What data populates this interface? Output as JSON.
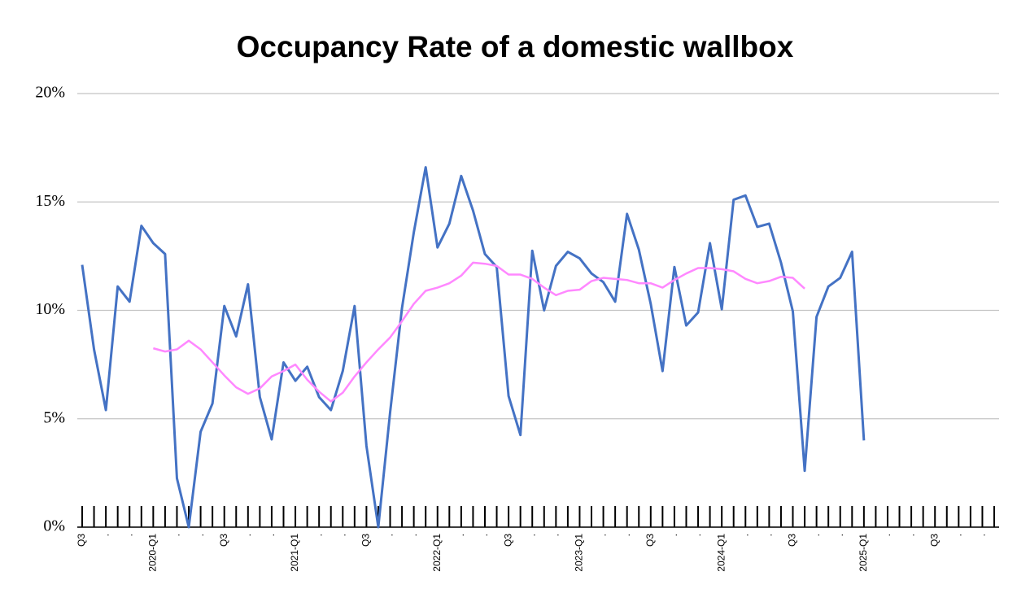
{
  "chart_data": {
    "type": "line",
    "title": "Occupancy Rate of a domestic wallbox",
    "categories": [
      "Q3",
      null,
      ".",
      null,
      ".",
      null,
      "2020-Q1",
      null,
      ".",
      null,
      ".",
      null,
      "Q3",
      null,
      ".",
      null,
      ".",
      null,
      "2021-Q1",
      null,
      ".",
      null,
      ".",
      null,
      "Q3",
      null,
      ".",
      null,
      ".",
      null,
      "2022-Q1",
      null,
      ".",
      null,
      ".",
      null,
      "Q3",
      null,
      ".",
      null,
      ".",
      null,
      "2023-Q1",
      null,
      ".",
      null,
      ".",
      null,
      "Q3",
      null,
      ".",
      null,
      ".",
      null,
      "2024-Q1",
      null,
      ".",
      null,
      ".",
      null,
      "Q3",
      null,
      ".",
      null,
      ".",
      null,
      "2025-Q1",
      null,
      ".",
      null,
      ".",
      null,
      "Q3",
      null,
      ".",
      null,
      ".",
      null
    ],
    "series": [
      {
        "color": "#4472c4",
        "values": [
          12.1,
          8.2,
          5.4,
          11.1,
          10.4,
          13.9,
          13.1,
          12.6,
          2.25,
          0,
          4.4,
          5.7,
          10.2,
          8.8,
          11.2,
          6.0,
          4.05,
          7.6,
          6.75,
          7.4,
          6.0,
          5.4,
          7.2,
          10.2,
          3.75,
          0,
          5.3,
          10.1,
          13.6,
          16.6,
          12.9,
          14.0,
          16.2,
          14.6,
          12.6,
          12.0,
          6.05,
          4.25,
          12.75,
          10.0,
          12.05,
          12.7,
          12.4,
          11.7,
          11.3,
          10.4,
          14.45,
          12.8,
          10.3,
          7.2,
          12.0,
          9.3,
          9.9,
          13.1,
          10.05,
          15.1,
          15.3,
          13.85,
          14.0,
          12.2,
          9.95,
          2.6,
          9.7,
          11.1,
          11.5,
          12.7,
          4.0,
          null,
          null,
          null,
          null,
          null,
          null,
          null,
          null,
          null,
          null,
          null
        ]
      },
      {
        "color": "#ff88ff",
        "values": [
          null,
          null,
          null,
          null,
          null,
          null,
          8.25,
          8.1,
          8.2,
          8.6,
          8.2,
          7.6,
          7.0,
          6.45,
          6.15,
          6.4,
          6.95,
          7.2,
          7.5,
          6.8,
          6.25,
          5.8,
          6.2,
          6.95,
          7.6,
          8.2,
          8.75,
          9.5,
          10.3,
          10.9,
          11.05,
          11.25,
          11.6,
          12.2,
          12.15,
          12.05,
          11.65,
          11.65,
          11.45,
          11.05,
          10.7,
          10.9,
          10.95,
          11.35,
          11.5,
          11.45,
          11.4,
          11.25,
          11.25,
          11.05,
          11.4,
          11.7,
          11.95,
          11.95,
          11.9,
          11.8,
          11.45,
          11.25,
          11.35,
          11.55,
          11.5,
          11.0,
          null,
          null,
          null,
          null,
          null,
          null,
          null,
          null,
          null,
          null,
          null,
          null,
          null,
          null,
          null,
          null
        ]
      }
    ],
    "ylim": [
      0,
      20
    ],
    "yticks": [
      {
        "value": 0,
        "label": "0%"
      },
      {
        "value": 5,
        "label": "5%"
      },
      {
        "value": 10,
        "label": "10%"
      },
      {
        "value": 15,
        "label": "15%"
      },
      {
        "value": 20,
        "label": "20%"
      }
    ],
    "grid": true
  }
}
